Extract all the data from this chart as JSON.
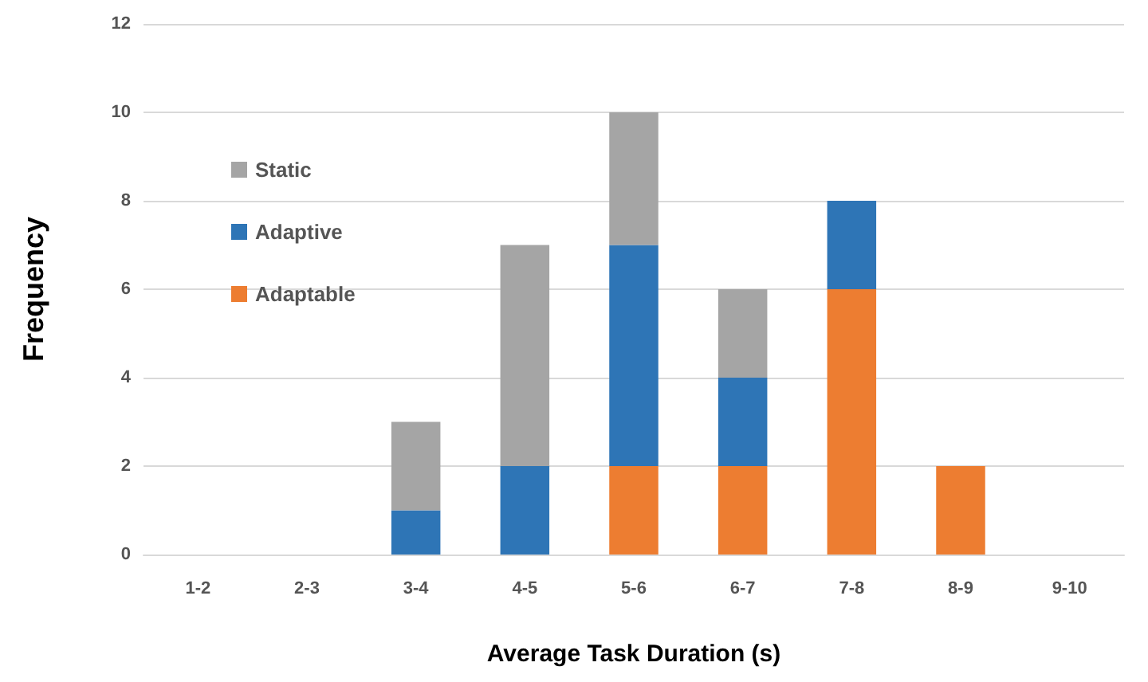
{
  "chart_data": {
    "type": "bar",
    "stacked": true,
    "xlabel": "Average Task Duration (s)",
    "ylabel": "Frequency",
    "categories": [
      "1-2",
      "2-3",
      "3-4",
      "4-5",
      "5-6",
      "6-7",
      "7-8",
      "8-9",
      "9-10"
    ],
    "series": [
      {
        "name": "Adaptable",
        "color": "#ed7d31",
        "values": [
          0,
          0,
          0,
          0,
          2,
          2,
          6,
          2,
          0
        ]
      },
      {
        "name": "Adaptive",
        "color": "#2e75b6",
        "values": [
          0,
          0,
          1,
          2,
          5,
          2,
          2,
          0,
          0
        ]
      },
      {
        "name": "Static",
        "color": "#a5a5a5",
        "values": [
          0,
          0,
          2,
          5,
          3,
          2,
          0,
          0,
          0
        ]
      }
    ],
    "ylim": [
      0,
      12
    ],
    "yticks": [
      0,
      2,
      4,
      6,
      8,
      10,
      12
    ],
    "grid": "y",
    "legend": "top left"
  }
}
